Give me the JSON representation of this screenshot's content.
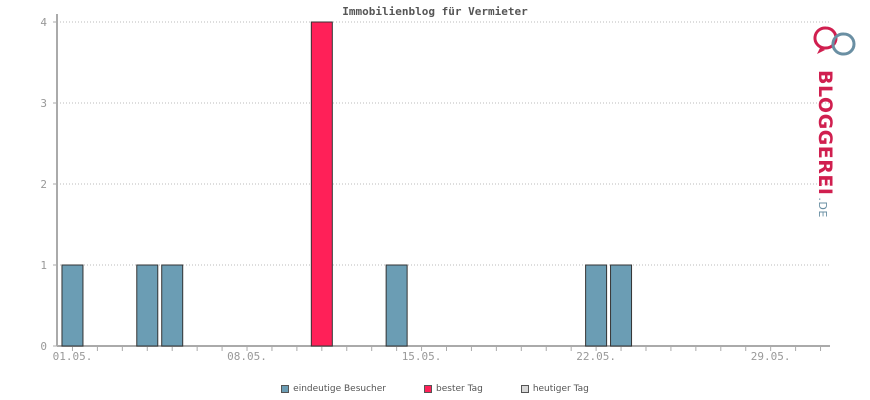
{
  "chart_data": {
    "type": "bar",
    "title": "Immobilienblog für Vermieter",
    "xlabel": "",
    "ylabel": "",
    "ylim": [
      0,
      4
    ],
    "yticks": [
      "0",
      "1",
      "2",
      "3",
      "4"
    ],
    "days": 31,
    "xtick_labels": [
      {
        "day": 1,
        "label": "01.05."
      },
      {
        "day": 8,
        "label": "08.05."
      },
      {
        "day": 15,
        "label": "15.05."
      },
      {
        "day": 22,
        "label": "22.05."
      },
      {
        "day": 29,
        "label": "29.05."
      }
    ],
    "series": [
      {
        "name": "eindeutige Besucher",
        "color": "#6b9db4",
        "points": [
          [
            1,
            1
          ],
          [
            4,
            1
          ],
          [
            5,
            1
          ],
          [
            14,
            1
          ],
          [
            22,
            1
          ],
          [
            23,
            1
          ]
        ]
      },
      {
        "name": "bester Tag",
        "color": "#ff2058",
        "points": [
          [
            11,
            4
          ]
        ]
      },
      {
        "name": "heutiger Tag",
        "color": "#d8d8d8",
        "points": []
      }
    ],
    "grid": true,
    "legend_position": "bottom"
  },
  "logo": {
    "text": "BLOGGEREI",
    "suffix": ".DE"
  }
}
